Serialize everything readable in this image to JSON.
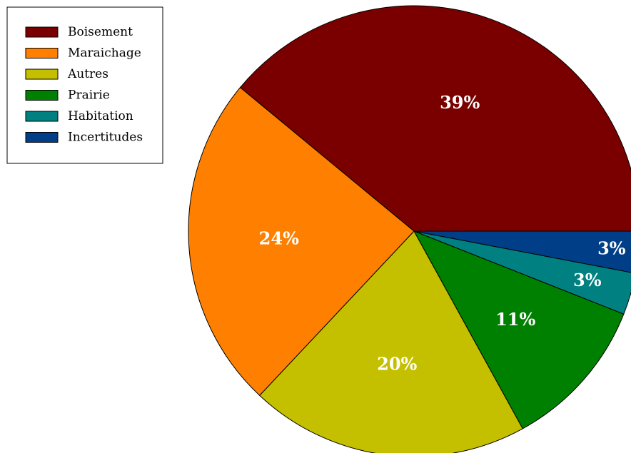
{
  "chart_data": {
    "type": "pie",
    "legend_position": "top-left",
    "slices": [
      {
        "label": "Boisement",
        "value": 39,
        "value_label": "39%",
        "color": "#7a0000"
      },
      {
        "label": "Maraichage",
        "value": 24,
        "value_label": "24%",
        "color": "#ff8000"
      },
      {
        "label": "Autres",
        "value": 20,
        "value_label": "20%",
        "color": "#c4c000"
      },
      {
        "label": "Prairie",
        "value": 11,
        "value_label": "11%",
        "color": "#008000"
      },
      {
        "label": "Habitation",
        "value": 3,
        "value_label": "3%",
        "color": "#008080"
      },
      {
        "label": "Incertitudes",
        "value": 3,
        "value_label": "3%",
        "color": "#003f87"
      }
    ]
  }
}
